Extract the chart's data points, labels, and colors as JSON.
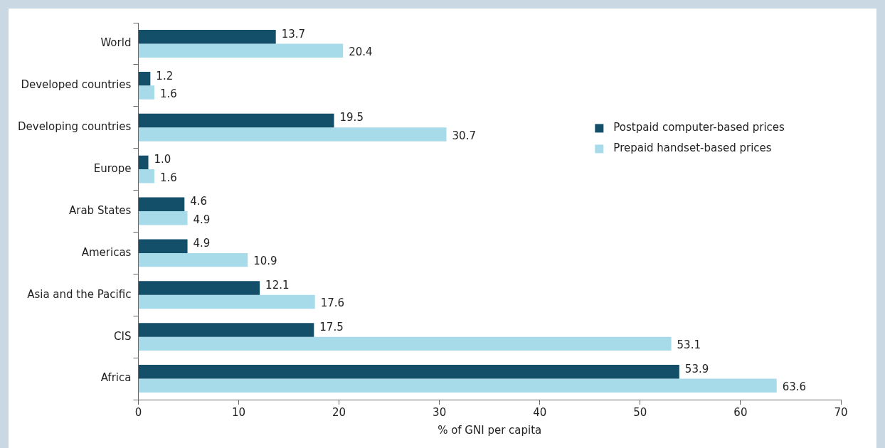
{
  "chart_data": {
    "type": "bar",
    "orientation": "horizontal",
    "xlabel": "% of GNI per capita",
    "categories": [
      "World",
      "Developed countries",
      "Developing countries",
      "Europe",
      "Arab States",
      "Americas",
      "Asia and the Pacific",
      "CIS",
      "Africa"
    ],
    "series": [
      {
        "name": "Postpaid computer-based prices",
        "color": "#134f68",
        "values": [
          13.7,
          1.2,
          19.5,
          1.0,
          4.6,
          4.9,
          12.1,
          17.5,
          53.9
        ]
      },
      {
        "name": "Prepaid handset-based prices",
        "color": "#a7dbea",
        "values": [
          20.4,
          1.6,
          30.7,
          1.6,
          4.9,
          10.9,
          17.6,
          53.1,
          63.6
        ]
      }
    ],
    "value_labels": [
      [
        "13.7",
        "1.2",
        "19.5",
        "1.0",
        "4.6",
        "4.9",
        "12.1",
        "17.5",
        "53.9"
      ],
      [
        "20.4",
        "1.6",
        "30.7",
        "1.6",
        "4.9",
        "10.9",
        "17.6",
        "53.1",
        "63.6"
      ]
    ],
    "xlim": [
      0,
      70
    ],
    "xticks": [
      0,
      10,
      20,
      30,
      40,
      50,
      60,
      70
    ],
    "grid": false,
    "legend": "top right"
  }
}
